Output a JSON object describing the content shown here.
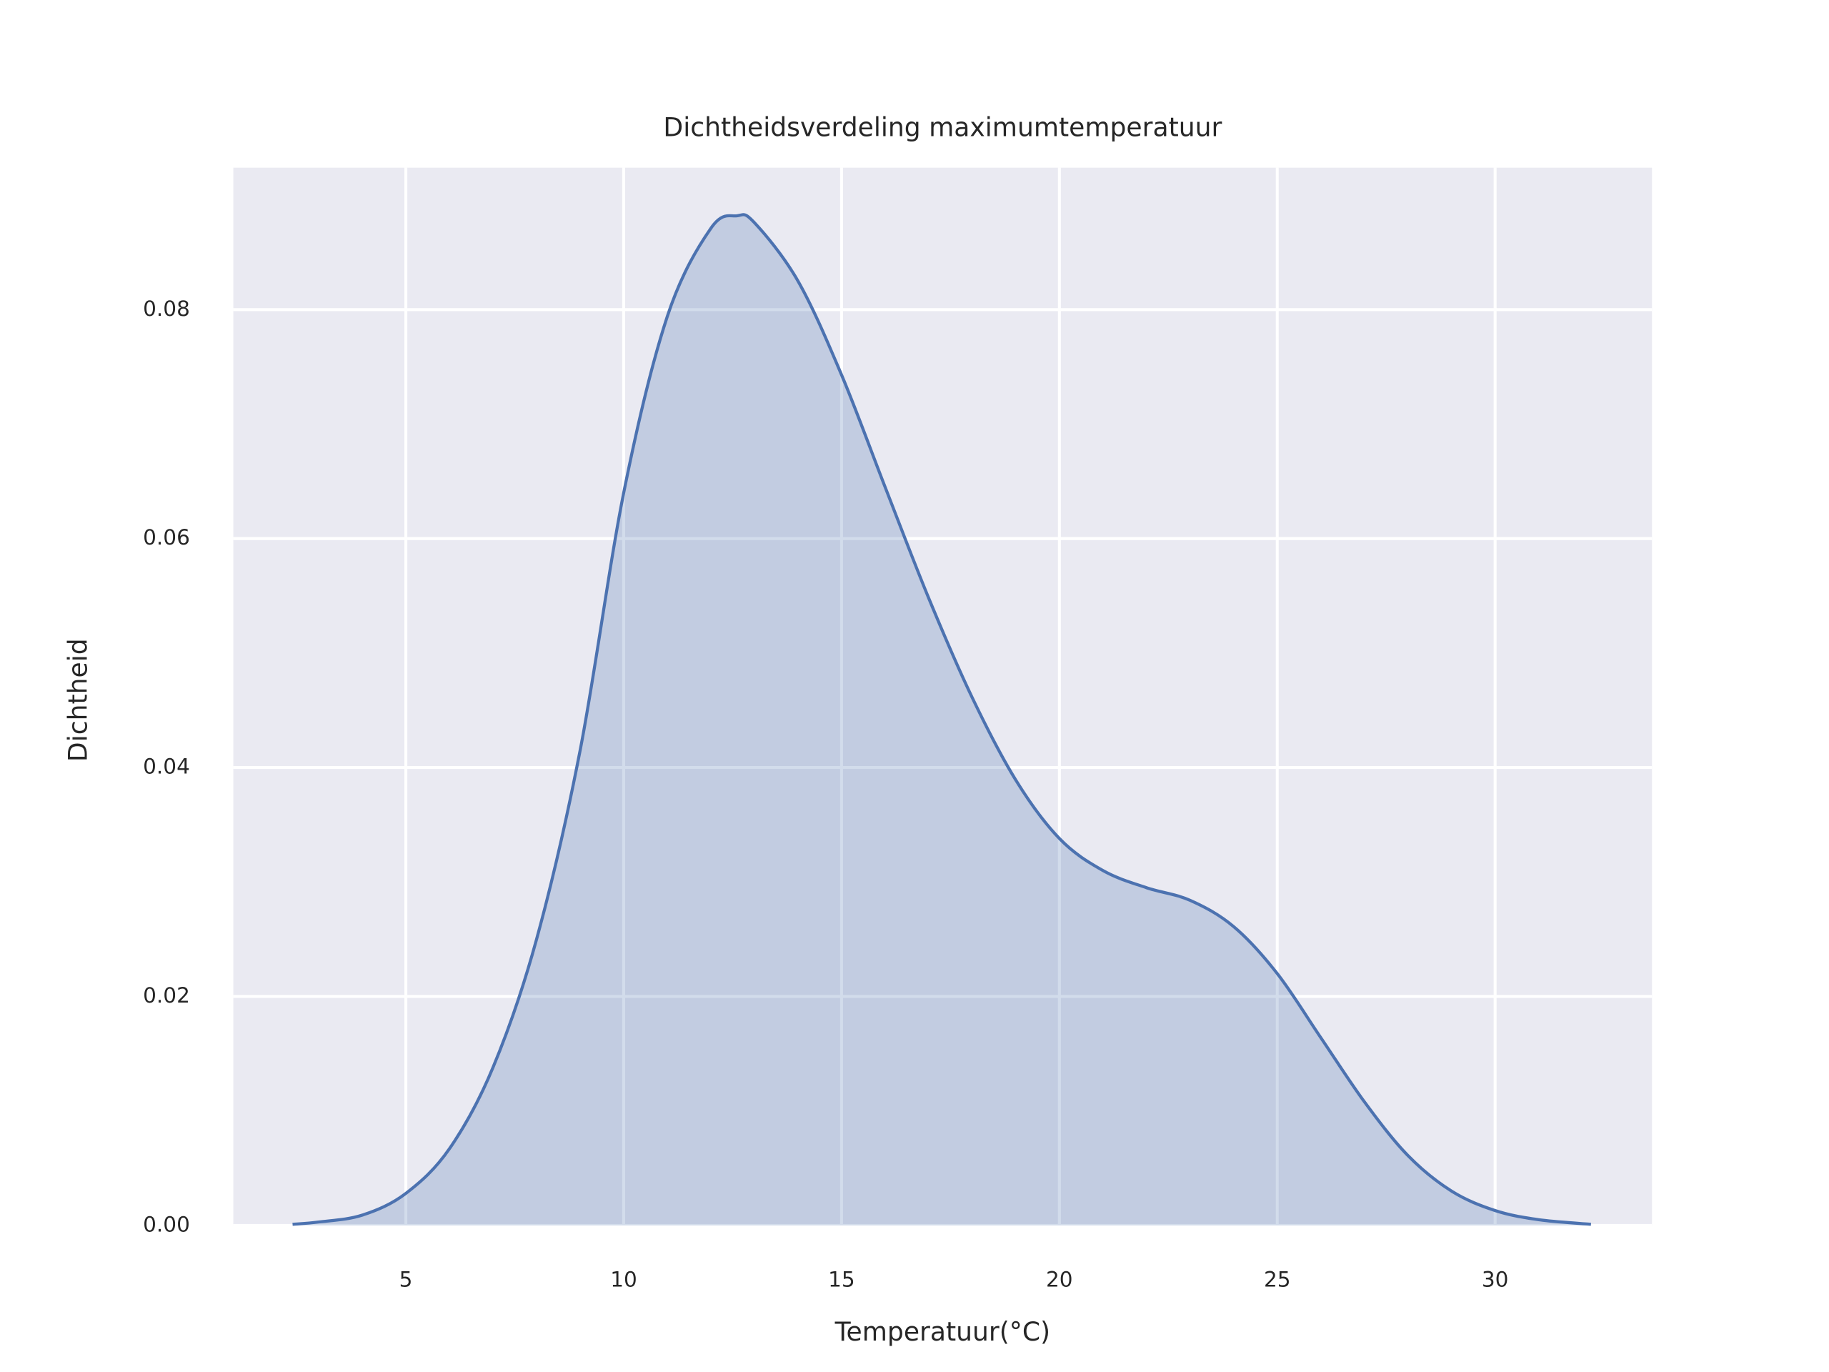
{
  "chart_data": {
    "type": "kde",
    "title": "Dichtheidsverdeling maximumtemperatuur",
    "xlabel": "Temperatuur(°C)",
    "ylabel": "Dichtheid",
    "x": [
      2.4,
      3,
      4,
      5,
      6,
      7,
      8,
      9,
      10,
      11,
      12,
      12.6,
      13,
      14,
      15,
      16,
      17,
      18,
      19,
      20,
      21,
      22,
      23,
      24,
      25,
      26,
      27,
      28,
      29,
      30,
      31,
      32.2
    ],
    "values": [
      0.0001,
      0.0003,
      0.0009,
      0.0028,
      0.0067,
      0.0138,
      0.025,
      0.0415,
      0.064,
      0.0794,
      0.0871,
      0.0882,
      0.0876,
      0.0825,
      0.0743,
      0.0645,
      0.0548,
      0.0461,
      0.0389,
      0.0338,
      0.031,
      0.0295,
      0.0284,
      0.0261,
      0.022,
      0.0164,
      0.0108,
      0.0061,
      0.003,
      0.0013,
      0.0005,
      0.0001
    ],
    "color": "#4c72b0",
    "xlim": [
      1.04,
      33.6
    ],
    "ylim": [
      0,
      0.0924
    ],
    "xticks": [
      5,
      10,
      15,
      20,
      25,
      30
    ],
    "yticks": [
      {
        "value": 0,
        "label": "0.00"
      },
      {
        "value": 0.02,
        "label": "0.02"
      },
      {
        "value": 0.04,
        "label": "0.04"
      },
      {
        "value": 0.06,
        "label": "0.06"
      },
      {
        "value": 0.08,
        "label": "0.08"
      }
    ],
    "grid": true
  }
}
